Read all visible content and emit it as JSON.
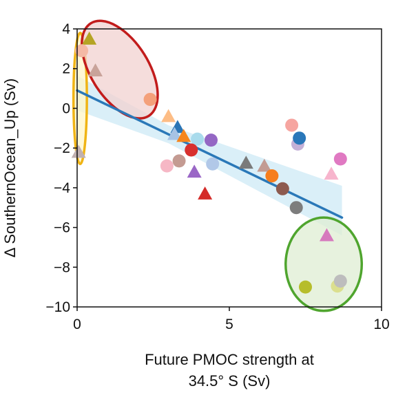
{
  "chart_data": {
    "type": "scatter",
    "title": "",
    "xlabel_lines": [
      "Future PMOC strength at",
      "34.5° S (Sv)"
    ],
    "ylabel": "Δ SouthernOcean_Up (Sv)",
    "xlim": [
      0,
      10
    ],
    "ylim": [
      -10,
      4
    ],
    "xticks": [
      "0",
      "5",
      "10"
    ],
    "yticks": [
      "−10",
      "−8",
      "−6",
      "−4",
      "−2",
      "0",
      "2",
      "4"
    ],
    "grid": false,
    "legend": "none",
    "regression": {
      "x": [
        0,
        8.7
      ],
      "y": [
        0.9,
        -5.5
      ],
      "color": "#2a78b8",
      "band_color": "#cdeaf6"
    },
    "points": [
      {
        "x": 0.4,
        "y": 3.5,
        "marker": "triangle",
        "color": "#b5a424"
      },
      {
        "x": 0.15,
        "y": 2.9,
        "marker": "circle",
        "color": "#f4b9a5"
      },
      {
        "x": 0.6,
        "y": 1.9,
        "marker": "triangle",
        "color": "#c9a39a"
      },
      {
        "x": 2.4,
        "y": 0.45,
        "marker": "circle",
        "color": "#f4a07a"
      },
      {
        "x": 0.05,
        "y": -2.2,
        "marker": "triangle",
        "color": "#c0b0b0"
      },
      {
        "x": 3.0,
        "y": -0.4,
        "marker": "triangle",
        "color": "#fdbd86"
      },
      {
        "x": 3.3,
        "y": -0.95,
        "marker": "triangle",
        "color": "#2b75b5"
      },
      {
        "x": 3.2,
        "y": -1.3,
        "marker": "triangle",
        "color": "#a7c3e4"
      },
      {
        "x": 3.5,
        "y": -1.4,
        "marker": "triangle",
        "color": "#f6861c"
      },
      {
        "x": 3.95,
        "y": -1.55,
        "marker": "circle",
        "color": "#a9dbec"
      },
      {
        "x": 4.4,
        "y": -1.6,
        "marker": "circle",
        "color": "#9467c4"
      },
      {
        "x": 3.75,
        "y": -2.1,
        "marker": "circle",
        "color": "#d8302e"
      },
      {
        "x": 2.95,
        "y": -2.9,
        "marker": "circle",
        "color": "#f6b7c5"
      },
      {
        "x": 3.35,
        "y": -2.65,
        "marker": "circle",
        "color": "#c49b92"
      },
      {
        "x": 3.85,
        "y": -3.2,
        "marker": "triangle",
        "color": "#9a67c6"
      },
      {
        "x": 4.45,
        "y": -2.8,
        "marker": "circle",
        "color": "#b1c8e8"
      },
      {
        "x": 4.2,
        "y": -4.3,
        "marker": "triangle",
        "color": "#d42b29"
      },
      {
        "x": 5.55,
        "y": -2.75,
        "marker": "triangle",
        "color": "#7a7a7a"
      },
      {
        "x": 6.15,
        "y": -2.9,
        "marker": "triangle",
        "color": "#c29b93"
      },
      {
        "x": 6.4,
        "y": -3.4,
        "marker": "circle",
        "color": "#f67e1e"
      },
      {
        "x": 6.75,
        "y": -4.05,
        "marker": "circle",
        "color": "#8d5a4f"
      },
      {
        "x": 7.05,
        "y": -0.85,
        "marker": "circle",
        "color": "#f6a5a0"
      },
      {
        "x": 7.25,
        "y": -1.8,
        "marker": "circle",
        "color": "#c4b0d7"
      },
      {
        "x": 7.3,
        "y": -1.5,
        "marker": "circle",
        "color": "#2a77b9"
      },
      {
        "x": 7.2,
        "y": -5.0,
        "marker": "circle",
        "color": "#7d7d7d"
      },
      {
        "x": 8.35,
        "y": -3.3,
        "marker": "triangle",
        "color": "#f7b5cd"
      },
      {
        "x": 8.65,
        "y": -2.55,
        "marker": "circle",
        "color": "#e079c2"
      },
      {
        "x": 8.2,
        "y": -6.4,
        "marker": "triangle",
        "color": "#d67abd"
      },
      {
        "x": 7.5,
        "y": -9.0,
        "marker": "circle",
        "color": "#b6bd2b"
      },
      {
        "x": 8.55,
        "y": -8.95,
        "marker": "circle",
        "color": "#dbdf8e"
      },
      {
        "x": 8.65,
        "y": -8.7,
        "marker": "circle",
        "color": "#bdbdbd"
      }
    ],
    "annotations": [
      {
        "shape": "ellipse",
        "cx": 0.1,
        "cy": 0.5,
        "rx": 0.22,
        "ry": 3.3,
        "rotate": 0,
        "stroke": "#f0b415",
        "fill": "#fff5c7"
      },
      {
        "shape": "ellipse",
        "cx": 1.4,
        "cy": 1.95,
        "rx": 0.95,
        "ry": 2.75,
        "rotate": -32,
        "stroke": "#c21c1c",
        "fill": "#f2d2d0"
      },
      {
        "shape": "ellipse",
        "cx": 8.1,
        "cy": -7.85,
        "rx": 1.25,
        "ry": 2.35,
        "rotate": 0,
        "stroke": "#4fa52e",
        "fill": "#dfeed3"
      }
    ]
  }
}
